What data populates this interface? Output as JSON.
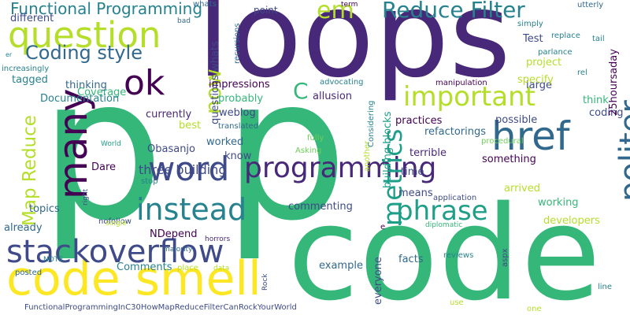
{
  "palette": {
    "background": "#ffffff",
    "dark_purple": "#440154",
    "indigo": "#482878",
    "dark_blue": "#3e4a89",
    "steel_blue": "#31688e",
    "teal": "#26828e",
    "sea_green": "#1f9e89",
    "green": "#35b779",
    "light_green": "#6ece58",
    "yellow_green": "#b5de2b",
    "yellow": "#fde725"
  },
  "words": [
    {
      "text": "loops",
      "color": "#482878"
    },
    {
      "text": "p",
      "color": "#35b779"
    },
    {
      "text": "p",
      "color": "#35b779"
    },
    {
      "text": "code",
      "color": "#35b779"
    },
    {
      "text": "code smell",
      "color": "#fde725"
    },
    {
      "text": "question",
      "color": "#b5de2b"
    },
    {
      "text": "ok",
      "color": "#440154"
    },
    {
      "text": "many",
      "color": "#440154"
    },
    {
      "text": "word",
      "color": "#3e4a89"
    },
    {
      "text": "stackoverflow",
      "color": "#3e4a89"
    },
    {
      "text": "instead",
      "color": "#26828e"
    },
    {
      "text": "programming",
      "color": "#482878"
    },
    {
      "text": "phrase",
      "color": "#1f9e89"
    },
    {
      "text": "href",
      "color": "#31688e"
    },
    {
      "text": "politer",
      "color": "#31688e"
    },
    {
      "text": "important",
      "color": "#b5de2b"
    },
    {
      "text": "metrics",
      "color": "#1f9e89"
    },
    {
      "text": "Reduce Filter",
      "color": "#26828e"
    },
    {
      "text": "Functional Programming",
      "color": "#26828e"
    },
    {
      "text": "Coding style",
      "color": "#31688e"
    },
    {
      "text": "Map Reduce",
      "color": "#b5de2b"
    },
    {
      "text": "now",
      "color": "#b5de2b"
    },
    {
      "text": "em",
      "color": "#b5de2b"
    },
    {
      "text": "C",
      "color": "#35b779"
    },
    {
      "text": "different",
      "color": "#3e4a89"
    },
    {
      "text": "Coverage",
      "color": "#35b779"
    },
    {
      "text": "Documentation",
      "color": "#26828e"
    },
    {
      "text": "tagged",
      "color": "#26828e"
    },
    {
      "text": "thinking",
      "color": "#31688e"
    },
    {
      "text": "increasingly",
      "color": "#26828e"
    },
    {
      "text": "er",
      "color": "#26828e"
    },
    {
      "text": "questions whats",
      "color": "#3e4a89"
    },
    {
      "text": "impressions",
      "color": "#440154"
    },
    {
      "text": "probably",
      "color": "#35b779"
    },
    {
      "text": "currently",
      "color": "#482878"
    },
    {
      "text": "weblog",
      "color": "#3e4a89"
    },
    {
      "text": "translated",
      "color": "#31688e"
    },
    {
      "text": "allusion",
      "color": "#482878"
    },
    {
      "text": "advocating",
      "color": "#26828e"
    },
    {
      "text": "building blocks",
      "color": "#1f9e89"
    },
    {
      "text": "recursions",
      "color": "#31688e"
    },
    {
      "text": "point",
      "color": "#3e4a89"
    },
    {
      "text": "whats",
      "color": "#31688e"
    },
    {
      "text": "term",
      "color": "#440154"
    },
    {
      "text": "bad",
      "color": "#31688e"
    },
    {
      "text": "Test",
      "color": "#3e4a89"
    },
    {
      "text": "parlance",
      "color": "#26828e"
    },
    {
      "text": "project",
      "color": "#b5de2b"
    },
    {
      "text": "large",
      "color": "#3e4a89"
    },
    {
      "text": "specify",
      "color": "#b5de2b"
    },
    {
      "text": "think",
      "color": "#35b779"
    },
    {
      "text": "coding",
      "color": "#3e4a89"
    },
    {
      "text": "utterly",
      "color": "#31688e"
    },
    {
      "text": "simply",
      "color": "#26828e"
    },
    {
      "text": "replace",
      "color": "#26828e"
    },
    {
      "text": "tail",
      "color": "#26828e"
    },
    {
      "text": "rel",
      "color": "#26828e"
    },
    {
      "text": "25hoursaday",
      "color": "#440154"
    },
    {
      "text": "manipulation",
      "color": "#440154"
    },
    {
      "text": "practices",
      "color": "#440154"
    },
    {
      "text": "possible",
      "color": "#3e4a89"
    },
    {
      "text": "refactorings",
      "color": "#31688e"
    },
    {
      "text": "terrible",
      "color": "#482878"
    },
    {
      "text": "something",
      "color": "#440154"
    },
    {
      "text": "time",
      "color": "#3e4a89"
    },
    {
      "text": "arrived",
      "color": "#b5de2b"
    },
    {
      "text": "working",
      "color": "#35b779"
    },
    {
      "text": "developers",
      "color": "#b5de2b"
    },
    {
      "text": "application",
      "color": "#3e4a89"
    },
    {
      "text": "means",
      "color": "#3e4a89"
    },
    {
      "text": "procedural",
      "color": "#6ece58"
    },
    {
      "text": "another",
      "color": "#b5de2b"
    },
    {
      "text": "Considering",
      "color": "#26828e"
    },
    {
      "text": "fully",
      "color": "#6ece58"
    },
    {
      "text": "Asking",
      "color": "#6ece58"
    },
    {
      "text": "best",
      "color": "#b5de2b"
    },
    {
      "text": "three building",
      "color": "#3e4a89"
    },
    {
      "text": "Obasanjo",
      "color": "#3e4a89"
    },
    {
      "text": "worked",
      "color": "#31688e"
    },
    {
      "text": "know",
      "color": "#3e4a89"
    },
    {
      "text": "Dare",
      "color": "#440154"
    },
    {
      "text": "stop",
      "color": "#26828e"
    },
    {
      "text": "World",
      "color": "#1f9e89"
    },
    {
      "text": "right",
      "color": "#3e4a89"
    },
    {
      "text": "topics",
      "color": "#31688e"
    },
    {
      "text": "nofollow",
      "color": "#3e4a89"
    },
    {
      "text": "already",
      "color": "#31688e"
    },
    {
      "text": "single",
      "color": "#b5de2b"
    },
    {
      "text": "NDepend",
      "color": "#440154"
    },
    {
      "text": "majority",
      "color": "#31688e"
    },
    {
      "text": "horrors",
      "color": "#482878"
    },
    {
      "text": "commenting",
      "color": "#3e4a89"
    },
    {
      "text": "diplomatic",
      "color": "#35b779"
    },
    {
      "text": "e",
      "color": "#440154"
    },
    {
      "text": "NOTE",
      "color": "#26828e"
    },
    {
      "text": "Comments",
      "color": "#26828e"
    },
    {
      "text": "place",
      "color": "#b5de2b"
    },
    {
      "text": "data",
      "color": "#b5de2b"
    },
    {
      "text": "Rock",
      "color": "#3e4a89"
    },
    {
      "text": "posted",
      "color": "#31688e"
    },
    {
      "text": "example",
      "color": "#31688e"
    },
    {
      "text": "everyone",
      "color": "#3e4a89"
    },
    {
      "text": "facts",
      "color": "#31688e"
    },
    {
      "text": "reviews",
      "color": "#26828e"
    },
    {
      "text": "aspx",
      "color": "#3e4a89"
    },
    {
      "text": "line",
      "color": "#26828e"
    },
    {
      "text": "use",
      "color": "#b5de2b"
    },
    {
      "text": "one",
      "color": "#b5de2b"
    },
    {
      "text": "⁩",
      "color": "#440154"
    },
    {
      "text": "FunctionalProgrammingInC30HowMapReduceFilterCanRockYourWorld",
      "color": "#3e4a89"
    }
  ]
}
